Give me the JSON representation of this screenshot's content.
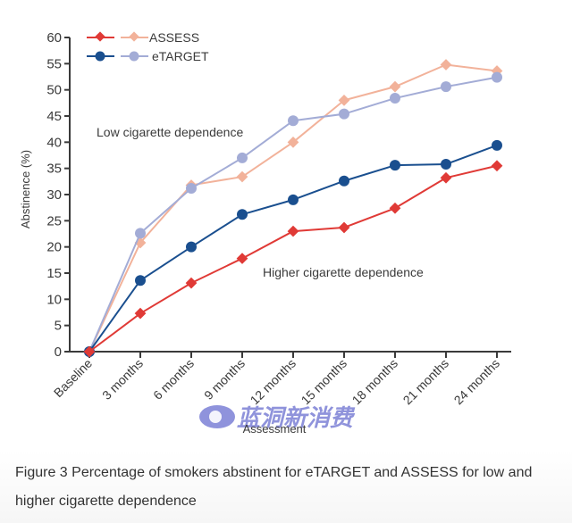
{
  "chart_data": {
    "type": "line",
    "title": "",
    "xlabel": "Assessment",
    "ylabel": "Abstinence (%)",
    "ylim": [
      0,
      60
    ],
    "yticks": [
      0,
      5,
      10,
      15,
      20,
      25,
      30,
      35,
      40,
      45,
      50,
      55,
      60
    ],
    "grid": false,
    "legend_position": "top-left",
    "categories": [
      "Baseline",
      "3 months",
      "6 months",
      "9 months",
      "12 months",
      "15 months",
      "18 months",
      "21 months",
      "24 months"
    ],
    "series": [
      {
        "name": "ASSESS (higher cigarette dependence)",
        "legend": "ASSESS",
        "group": "Higher cigarette dependence",
        "color": "#e03a36",
        "marker": "diamond",
        "values": [
          0,
          7.3,
          13.1,
          17.8,
          23.0,
          23.7,
          27.4,
          33.2,
          35.5
        ]
      },
      {
        "name": "ASSESS (low cigarette dependence)",
        "legend": "ASSESS",
        "group": "Low cigarette dependence",
        "color": "#f2b29a",
        "marker": "diamond",
        "values": [
          0,
          20.8,
          31.8,
          33.4,
          40.0,
          48.0,
          50.6,
          54.8,
          53.6
        ]
      },
      {
        "name": "eTARGET (higher cigarette dependence)",
        "legend": "eTARGET",
        "group": "Higher cigarette dependence",
        "color": "#1a4f8f",
        "marker": "circle",
        "values": [
          0,
          13.6,
          20.0,
          26.2,
          29.0,
          32.6,
          35.6,
          35.8,
          39.4
        ]
      },
      {
        "name": "eTARGET (low cigarette dependence)",
        "legend": "eTARGET",
        "group": "Low cigarette dependence",
        "color": "#a3acd6",
        "marker": "circle",
        "values": [
          0,
          22.6,
          31.2,
          37.0,
          44.1,
          45.4,
          48.4,
          50.6,
          52.4
        ]
      }
    ],
    "annotations": [
      "Low cigarette dependence",
      "Higher cigarette dependence"
    ]
  },
  "legend": {
    "assess_label": "ASSESS",
    "etarget_label": "eTARGET"
  },
  "annotations": {
    "low": "Low cigarette dependence",
    "high": "Higher cigarette dependence"
  },
  "axes": {
    "xlabel": "Assessment",
    "ylabel": "Abstinence (%)"
  },
  "watermark": {
    "text": "蓝洞新消费"
  },
  "caption": {
    "text": "Figure 3  Percentage of smokers abstinent for eTARGET and ASSESS for low and higher cigarette dependence"
  }
}
